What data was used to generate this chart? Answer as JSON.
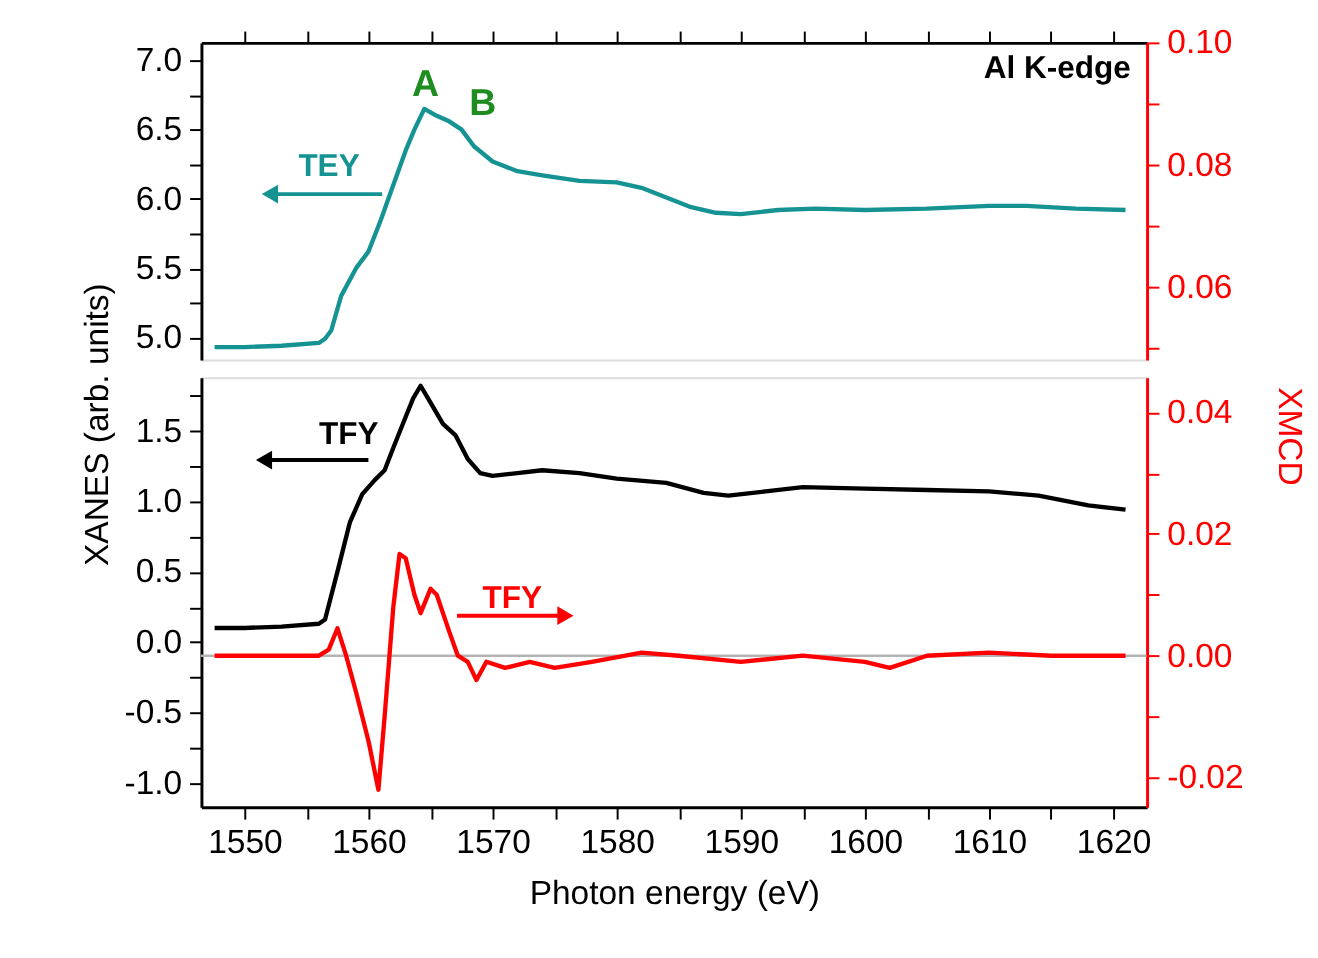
{
  "chart_data": [
    {
      "type": "line",
      "xlim": [
        1546.5,
        1622.7
      ],
      "xticks": [
        {
          "value": 1550,
          "label": null
        },
        {
          "value": 1555,
          "label": null
        },
        {
          "value": 1560,
          "label": null
        },
        {
          "value": 1565,
          "label": null
        },
        {
          "value": 1570,
          "label": null
        },
        {
          "value": 1575,
          "label": null
        },
        {
          "value": 1580,
          "label": null
        },
        {
          "value": 1585,
          "label": null
        },
        {
          "value": 1590,
          "label": null
        },
        {
          "value": 1595,
          "label": null
        },
        {
          "value": 1600,
          "label": null
        },
        {
          "value": 1605,
          "label": null
        },
        {
          "value": 1610,
          "label": null
        },
        {
          "value": 1615,
          "label": null
        },
        {
          "value": 1620,
          "label": null
        }
      ],
      "tick_labels": "y",
      "ylim": [
        4.84,
        7.13
      ],
      "yticks": [
        {
          "value": 5,
          "label": "5.0"
        },
        {
          "value": 5.25,
          "label": null
        },
        {
          "value": 5.5,
          "label": "5.5"
        },
        {
          "value": 5.75,
          "label": null
        },
        {
          "value": 6,
          "label": "6.0"
        },
        {
          "value": 6.25,
          "label": null
        },
        {
          "value": 6.5,
          "label": "6.5"
        },
        {
          "value": 6.75,
          "label": null
        },
        {
          "value": 7,
          "label": "7.0"
        }
      ],
      "y2lim": [
        0.0482,
        0.1
      ],
      "y2ticks": [
        {
          "value": 0.05,
          "label": null
        },
        {
          "value": 0.06,
          "label": "0.06"
        },
        {
          "value": 0.07,
          "label": null
        },
        {
          "value": 0.08,
          "label": "0.08"
        },
        {
          "value": 0.09,
          "label": null
        },
        {
          "value": 0.1,
          "label": "0.10"
        }
      ],
      "series": [
        {
          "name": "TEY",
          "color": "#159393",
          "x": [
            1547.6,
            1550,
            1553,
            1556,
            1556.5,
            1557,
            1557.8,
            1559,
            1560,
            1561,
            1562,
            1563,
            1563.7,
            1564.5,
            1565.5,
            1566.5,
            1567.5,
            1568.5,
            1570,
            1572,
            1574,
            1577,
            1580,
            1582,
            1584,
            1586,
            1588,
            1590,
            1593,
            1596,
            1600,
            1605,
            1610,
            1613,
            1617,
            1621
          ],
          "values": [
            4.93,
            4.93,
            4.94,
            4.96,
            4.99,
            5.05,
            5.3,
            5.5,
            5.62,
            5.85,
            6.1,
            6.35,
            6.5,
            6.65,
            6.6,
            6.56,
            6.5,
            6.38,
            6.27,
            6.2,
            6.17,
            6.13,
            6.12,
            6.08,
            6.01,
            5.94,
            5.9,
            5.89,
            5.92,
            5.93,
            5.92,
            5.93,
            5.95,
            5.95,
            5.93,
            5.92
          ]
        }
      ],
      "annotations": [
        "A",
        "B",
        "Al K-edge"
      ]
    },
    {
      "type": "line",
      "xlabel": "Photon energy (eV)",
      "ylabel": "XANES (arb. units)",
      "y2label": "XMCD",
      "xlim": [
        1546.5,
        1622.7
      ],
      "xticks": [
        1550,
        {
          "value": 1555,
          "label": null
        },
        1560,
        {
          "value": 1565,
          "label": null
        },
        1570,
        {
          "value": 1575,
          "label": null
        },
        1580,
        {
          "value": 1585,
          "label": null
        },
        1590,
        {
          "value": 1595,
          "label": null
        },
        1600,
        {
          "value": 1605,
          "label": null
        },
        1610,
        {
          "value": 1615,
          "label": null
        },
        1620
      ],
      "ylim": [
        -1.17,
        1.88
      ],
      "yticks": [
        {
          "value": -1,
          "label": "-1.0"
        },
        {
          "value": -0.75,
          "label": null
        },
        {
          "value": -0.5,
          "label": "-0.5"
        },
        {
          "value": -0.25,
          "label": null
        },
        {
          "value": 0,
          "label": "0.0"
        },
        {
          "value": 0.25,
          "label": null
        },
        {
          "value": 0.5,
          "label": "0.5"
        },
        {
          "value": 0.75,
          "label": null
        },
        {
          "value": 1,
          "label": "1.0"
        },
        {
          "value": 1.25,
          "label": null
        },
        {
          "value": 1.5,
          "label": "1.5"
        },
        {
          "value": 1.75,
          "label": null
        }
      ],
      "y2lim": [
        -0.0248,
        0.0457
      ],
      "y2ticks": [
        {
          "value": -0.02,
          "label": "-0.02"
        },
        {
          "value": -0.01,
          "label": null
        },
        {
          "value": 0,
          "label": "0.00"
        },
        {
          "value": 0.01,
          "label": null
        },
        {
          "value": 0.02,
          "label": "0.02"
        },
        {
          "value": 0.03,
          "label": null
        },
        {
          "value": 0.04,
          "label": "0.04"
        }
      ],
      "series": [
        {
          "name": "TFY",
          "color": "#000000",
          "x": [
            1547.6,
            1550,
            1553,
            1556,
            1556.5,
            1557.5,
            1558.5,
            1559.5,
            1560.5,
            1561.3,
            1562,
            1563,
            1563.6,
            1564.2,
            1565,
            1566,
            1567,
            1568,
            1569,
            1570,
            1572,
            1574,
            1577,
            1580,
            1584,
            1587,
            1589,
            1592,
            1595,
            1600,
            1605,
            1610,
            1614,
            1618,
            1621
          ],
          "values": [
            0.1,
            0.1,
            0.11,
            0.13,
            0.16,
            0.5,
            0.85,
            1.05,
            1.15,
            1.22,
            1.38,
            1.6,
            1.73,
            1.82,
            1.7,
            1.55,
            1.47,
            1.3,
            1.2,
            1.18,
            1.2,
            1.22,
            1.2,
            1.16,
            1.13,
            1.06,
            1.04,
            1.07,
            1.1,
            1.09,
            1.08,
            1.07,
            1.04,
            0.97,
            0.94
          ]
        },
        {
          "name": "TFY",
          "color": "#ff0000",
          "axis": "y2",
          "x": [
            1547.6,
            1550,
            1553,
            1556,
            1556.8,
            1557.5,
            1558.2,
            1559,
            1560,
            1560.8,
            1561.3,
            1562,
            1562.5,
            1563,
            1563.7,
            1564.2,
            1565,
            1565.5,
            1566.5,
            1567.2,
            1568,
            1568.7,
            1569.5,
            1571,
            1573,
            1575,
            1578,
            1582,
            1585,
            1590,
            1595,
            1600,
            1602,
            1605,
            1610,
            1615,
            1621
          ],
          "values": [
            0,
            0,
            0,
            0,
            0.001,
            0.0045,
            0,
            -0.006,
            -0.014,
            -0.022,
            -0.01,
            0.008,
            0.0167,
            0.016,
            0.01,
            0.007,
            0.011,
            0.01,
            0.004,
            0,
            -0.001,
            -0.004,
            -0.001,
            -0.002,
            -0.001,
            -0.002,
            -0.001,
            0.0005,
            0,
            -0.001,
            0,
            -0.001,
            -0.002,
            0,
            0.0005,
            0,
            0
          ]
        }
      ],
      "ref_lines": [
        {
          "axis": "y2",
          "value": 0,
          "color": "#b4b4b4"
        }
      ]
    }
  ]
}
